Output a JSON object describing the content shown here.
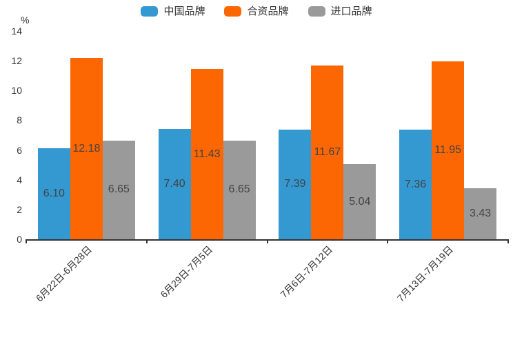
{
  "chart_data": {
    "type": "bar",
    "title": "",
    "unit_label": "%",
    "categories": [
      "6月22日-6月28日",
      "6月29日-7月5日",
      "7月6日-7月12日",
      "7月13日-7月19日"
    ],
    "series": [
      {
        "name": "中国品牌",
        "color": "#3498d1",
        "values": [
          6.1,
          7.4,
          7.39,
          7.36
        ]
      },
      {
        "name": "合资品牌",
        "color": "#fd6703",
        "values": [
          12.18,
          11.43,
          11.67,
          11.95
        ]
      },
      {
        "name": "进口品牌",
        "color": "#9a9a9a",
        "values": [
          6.65,
          6.65,
          5.04,
          3.43
        ]
      }
    ],
    "y_ticks": [
      0,
      2,
      4,
      6,
      8,
      10,
      12,
      14
    ],
    "ylim": [
      0,
      14
    ],
    "grid": false,
    "legend_position": "top-center",
    "value_labels": {
      "position": "inside-center",
      "decimals": 2,
      "color": "#434343"
    },
    "x_label_rotation_deg": 45,
    "axis_color": "#333333"
  }
}
